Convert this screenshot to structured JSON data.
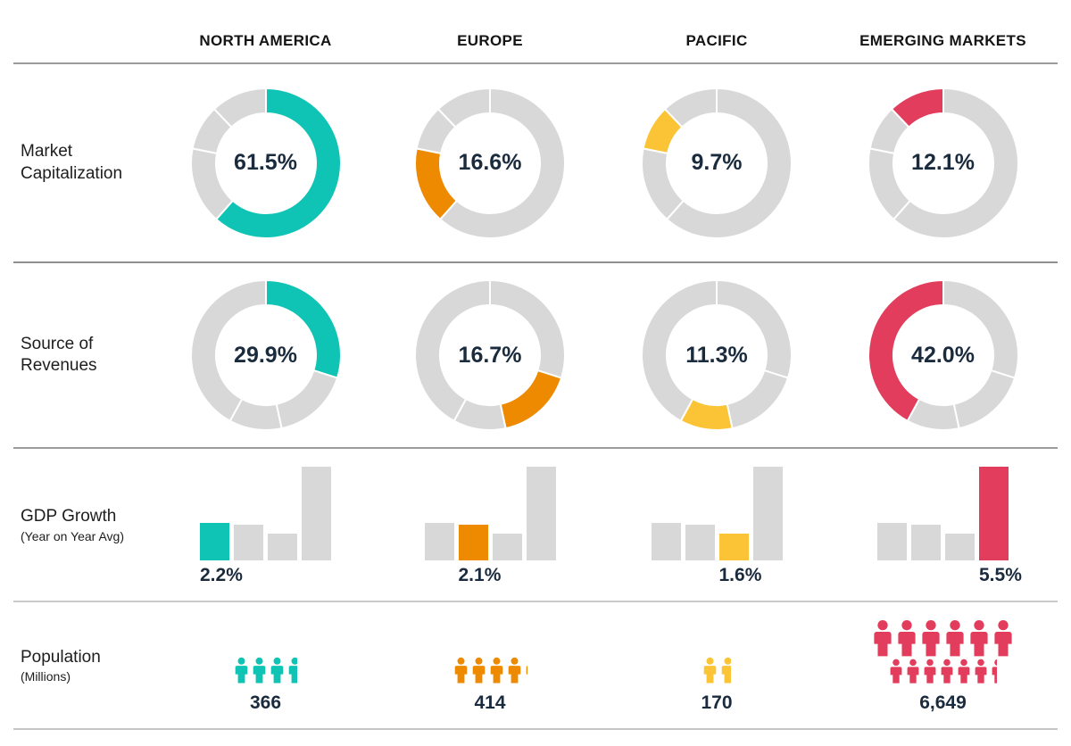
{
  "header": {
    "columns": [
      "NORTH AMERICA",
      "EUROPE",
      "PACIFIC",
      "EMERGING MARKETS"
    ]
  },
  "colors": {
    "palette": [
      "#0FC4B4",
      "#ED8A00",
      "#FBC437",
      "#E23D5C"
    ],
    "muted": "#D8D8D8",
    "value_text": "#1B2B3E"
  },
  "rows": [
    {
      "label": "Market Capitalization",
      "sub": "",
      "cells": [
        "61.5%",
        "16.6%",
        "9.7%",
        "12.1%"
      ]
    },
    {
      "label": "Source of Revenues",
      "sub": "",
      "cells": [
        "29.9%",
        "16.7%",
        "11.3%",
        "42.0%"
      ]
    },
    {
      "label": "GDP Growth",
      "sub": "(Year on Year Avg)",
      "cells": [
        "2.2%",
        "2.1%",
        "1.6%",
        "5.5%"
      ]
    },
    {
      "label": "Population",
      "sub": "(Millions)",
      "cells": [
        "366",
        "414",
        "170",
        "6,649"
      ]
    }
  ],
  "chart_data": [
    {
      "type": "pie",
      "variant": "donut-row",
      "title": "Market Capitalization",
      "categories": [
        "North America",
        "Europe",
        "Pacific",
        "Emerging Markets"
      ],
      "values": [
        61.5,
        16.6,
        9.7,
        12.1
      ],
      "labels": [
        "61.5%",
        "16.6%",
        "9.7%",
        "12.1%"
      ],
      "note": "four donuts share the same segment layout; each highlights its own region slice, others gray"
    },
    {
      "type": "pie",
      "variant": "donut-row",
      "title": "Source of Revenues",
      "categories": [
        "North America",
        "Europe",
        "Pacific",
        "Emerging Markets"
      ],
      "values": [
        29.9,
        16.7,
        11.3,
        42.0
      ],
      "labels": [
        "29.9%",
        "16.7%",
        "11.3%",
        "42.0%"
      ]
    },
    {
      "type": "bar",
      "title": "GDP Growth (Year on Year Avg)",
      "categories": [
        "North America",
        "Europe",
        "Pacific",
        "Emerging Markets"
      ],
      "values": [
        2.2,
        2.1,
        1.6,
        5.5
      ],
      "labels": [
        "2.2%",
        "2.1%",
        "1.6%",
        "5.5%"
      ],
      "ylim": [
        0,
        5.5
      ],
      "note": "each column repeats all four bars, highlighting its own bar in region color"
    },
    {
      "type": "pictogram",
      "title": "Population (Millions)",
      "categories": [
        "North America",
        "Europe",
        "Pacific",
        "Emerging Markets"
      ],
      "values": [
        366,
        414,
        170,
        6649
      ],
      "labels": [
        "366",
        "414",
        "170",
        "6,649"
      ],
      "icon_rows": [
        [
          3.66
        ],
        [
          4.15
        ],
        [
          1.7
        ],
        [
          6,
          6.45
        ]
      ],
      "icon_unit_sizes": [
        [
          "md"
        ],
        [
          "md"
        ],
        [
          "md"
        ],
        [
          "lg",
          "sm"
        ]
      ]
    }
  ]
}
